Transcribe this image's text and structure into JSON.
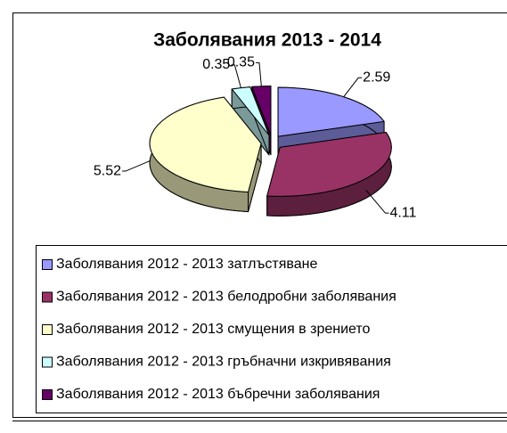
{
  "chart_data": {
    "type": "pie3d",
    "title": "Заболявания 2013 - 2014",
    "categories": [
      "Заболявания 2012 - 2013 затлъстяване",
      "Заболявания 2012 - 2013 белодробни заболявания",
      "Заболявания 2012 - 2013 смущения в зрението",
      "Заболявания 2012 - 2013 гръбначни изкривявания",
      "Заболявания 2012 - 2013 бъбречни заболявания"
    ],
    "values": [
      2.59,
      4.11,
      5.52,
      0.35,
      0.35
    ],
    "colors": [
      "#9999FF",
      "#993366",
      "#FFFFCC",
      "#CCFFFF",
      "#660066"
    ],
    "legend": "bottom"
  }
}
